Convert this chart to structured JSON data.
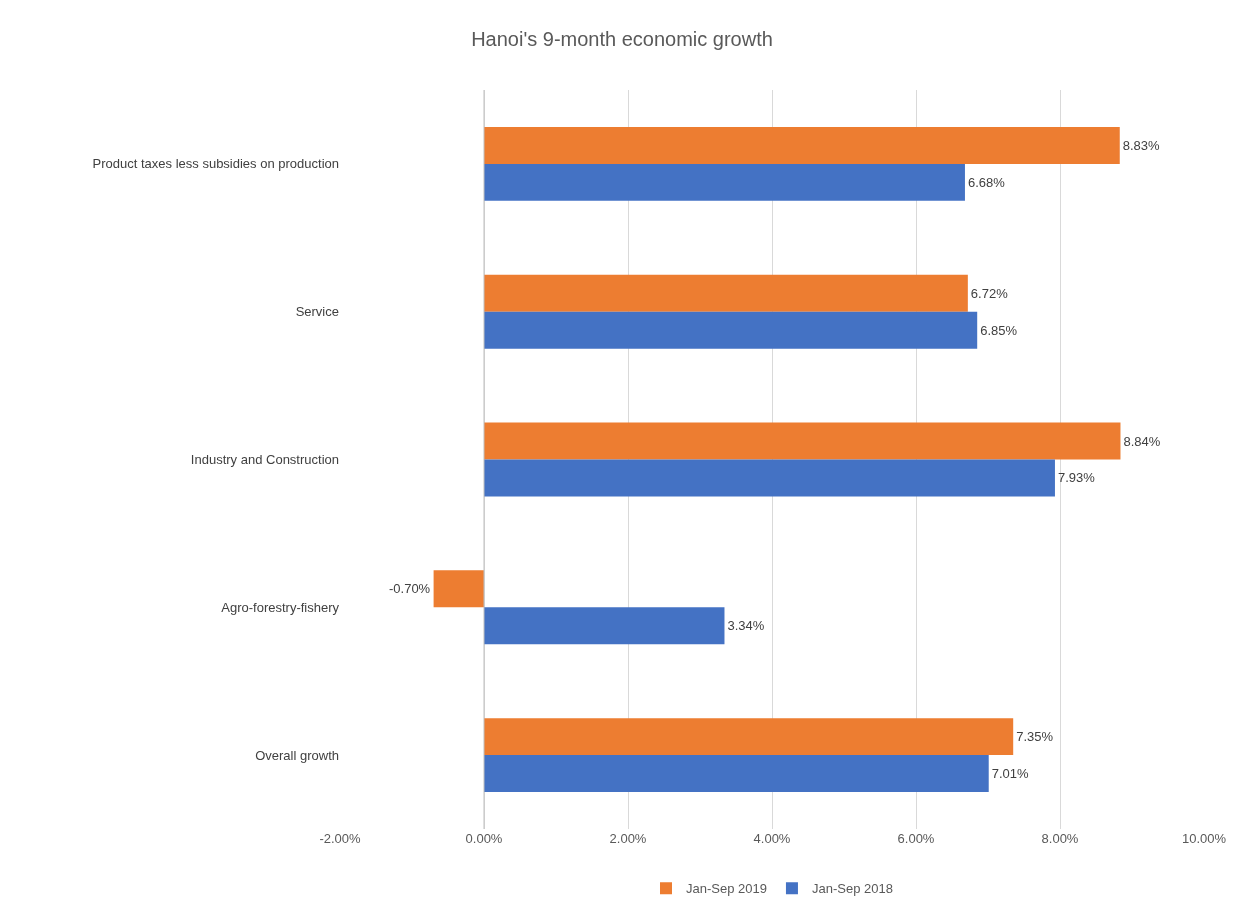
{
  "chart_data": {
    "type": "bar",
    "orientation": "horizontal",
    "title": "Hanoi's 9-month economic growth",
    "categories": [
      "Product taxes less subsidies on production",
      "Service",
      "Industry and Construction",
      "Agro-forestry-fishery",
      "Overall growth"
    ],
    "series": [
      {
        "name": "Jan-Sep 2019",
        "color": "#ed7d31",
        "values": [
          8.83,
          6.72,
          8.84,
          -0.7,
          7.35
        ],
        "value_labels": [
          "8.83%",
          "6.72%",
          "8.84%",
          "-0.70%",
          "7.35%"
        ]
      },
      {
        "name": "Jan-Sep 2018",
        "color": "#4472c4",
        "values": [
          6.68,
          6.85,
          7.93,
          3.34,
          7.01
        ],
        "value_labels": [
          "6.68%",
          "6.85%",
          "7.93%",
          "3.34%",
          "7.01%"
        ]
      }
    ],
    "xlim": [
      -2,
      10
    ],
    "xticks": [
      {
        "value": -2,
        "label": "-2.00%"
      },
      {
        "value": 0,
        "label": "0.00%"
      },
      {
        "value": 2,
        "label": "2.00%"
      },
      {
        "value": 4,
        "label": "4.00%"
      },
      {
        "value": 6,
        "label": "6.00%"
      },
      {
        "value": 8,
        "label": "8.00%"
      },
      {
        "value": 10,
        "label": "10.00%"
      }
    ],
    "grid": "x",
    "legend": "bottom"
  }
}
